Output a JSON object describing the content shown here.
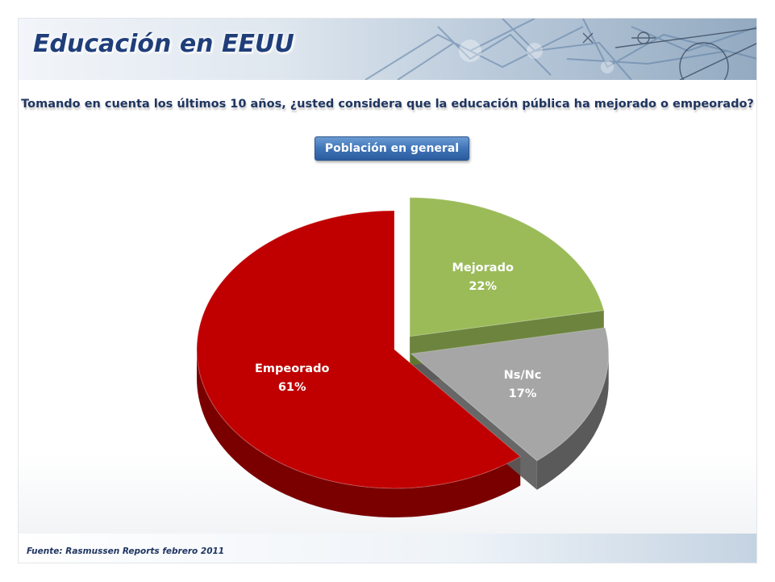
{
  "slide": {
    "title": "Educación en EEUU",
    "question": "Tomando en cuenta los últimos 10 años, ¿usted considera que la educación pública ha mejorado o empeorado?",
    "population_button": "Población en general",
    "source": "Fuente: Rasmussen Reports febrero 2011"
  },
  "chart_data": {
    "type": "pie",
    "style": "3d-exploded",
    "labels": [
      "Mejorado",
      "Ns/Nc",
      "Empeorado"
    ],
    "values": [
      22,
      17,
      61
    ],
    "value_labels": [
      "22%",
      "17%",
      "61%"
    ],
    "colors": [
      "#9bbb59",
      "#a6a6a6",
      "#c00000"
    ],
    "side_colors": [
      "#5f7a2c",
      "#5a5a5a",
      "#7a0000"
    ],
    "label_colors": [
      "#ffffff",
      "#ffffff",
      "#ffffff"
    ]
  }
}
